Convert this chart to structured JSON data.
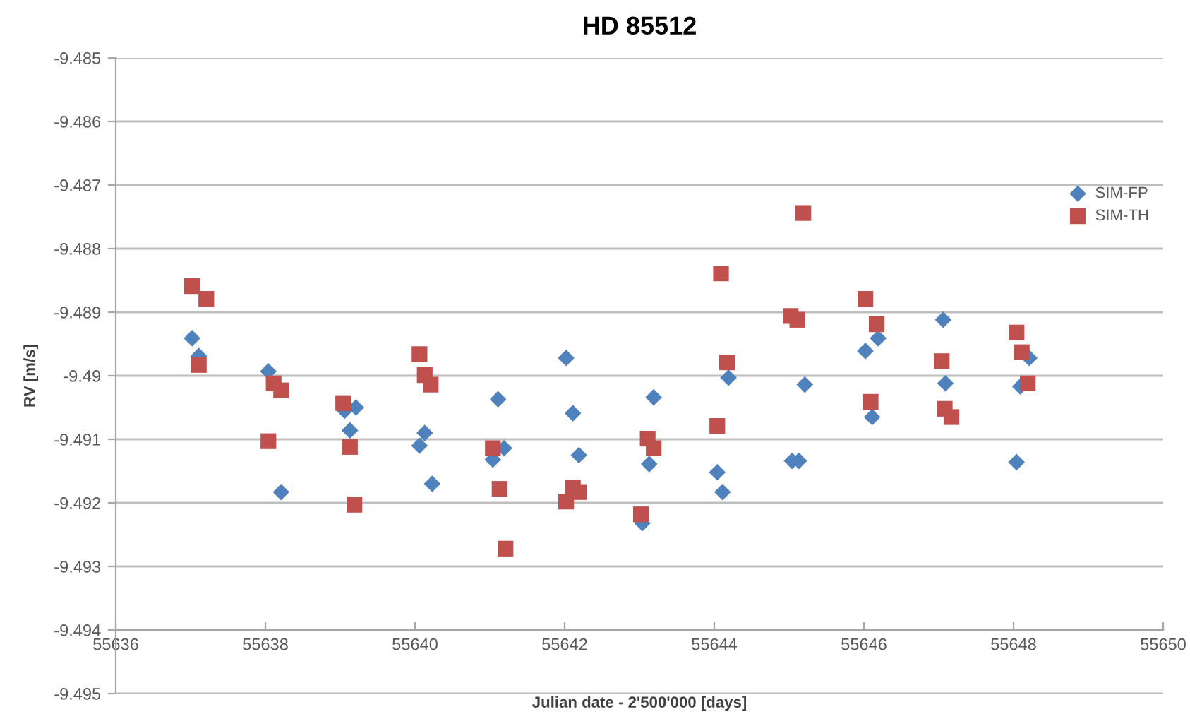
{
  "chart_data": {
    "type": "scatter",
    "title": "HD 85512",
    "xlabel": "Julian date - 2'500'000 [days]",
    "ylabel": "RV [m/s]",
    "xlim": [
      55636,
      55650
    ],
    "xticks": [
      55636,
      55638,
      55640,
      55642,
      55644,
      55646,
      55648,
      55650
    ],
    "ylim": [
      -9.495,
      -9.485
    ],
    "yticks": [
      -9.495,
      -9.494,
      -9.493,
      -9.492,
      -9.491,
      -9.49,
      -9.489,
      -9.488,
      -9.487,
      -9.486,
      -9.485
    ],
    "grid": "y",
    "legend": "top right",
    "series": [
      {
        "name": "SIM-FP",
        "color": "#4f81bd",
        "marker": "diamond",
        "x": [
          55637.02,
          55637.11,
          55638.04,
          55638.21,
          55639.06,
          55639.13,
          55639.21,
          55640.06,
          55640.13,
          55640.23,
          55641.11,
          55641.04,
          55641.19,
          55642.02,
          55642.11,
          55642.19,
          55643.19,
          55643.13,
          55643.04,
          55644.19,
          55644.04,
          55644.11,
          55645.21,
          55645.04,
          55645.13,
          55646.19,
          55646.02,
          55646.11,
          55647.06,
          55647.09,
          55648.21,
          55648.09,
          55648.04
        ],
        "values": [
          -9.48941,
          -9.48969,
          -9.48993,
          -9.49183,
          -9.49055,
          -9.49086,
          -9.4905,
          -9.4911,
          -9.4909,
          -9.4917,
          -9.49037,
          -9.49132,
          -9.49114,
          -9.48972,
          -9.49059,
          -9.49125,
          -9.49034,
          -9.49139,
          -9.49232,
          -9.49003,
          -9.49152,
          -9.49183,
          -9.49014,
          -9.49134,
          -9.49134,
          -9.48941,
          -9.48961,
          -9.49065,
          -9.48912,
          -9.49012,
          -9.48972,
          -9.49017,
          -9.49136
        ]
      },
      {
        "name": "SIM-TH",
        "color": "#c0504d",
        "marker": "square",
        "x": [
          55637.02,
          55637.21,
          55637.11,
          55638.04,
          55638.11,
          55638.21,
          55639.04,
          55639.13,
          55639.19,
          55640.06,
          55640.13,
          55640.21,
          55641.04,
          55641.13,
          55641.21,
          55642.02,
          55642.11,
          55642.19,
          55643.02,
          55643.11,
          55643.19,
          55644.04,
          55644.09,
          55644.17,
          55645.02,
          55645.11,
          55645.19,
          55646.02,
          55646.17,
          55646.09,
          55647.04,
          55647.08,
          55647.17,
          55648.04,
          55648.11,
          55648.19
        ],
        "values": [
          -9.48859,
          -9.48879,
          -9.48983,
          -9.49103,
          -9.49012,
          -9.49023,
          -9.49043,
          -9.49112,
          -9.49203,
          -9.48966,
          -9.48999,
          -9.49014,
          -9.49114,
          -9.49178,
          -9.49272,
          -9.49198,
          -9.49176,
          -9.49183,
          -9.49218,
          -9.49099,
          -9.49114,
          -9.49079,
          -9.48839,
          -9.48979,
          -9.48906,
          -9.48912,
          -9.48744,
          -9.48879,
          -9.48919,
          -9.49041,
          -9.48977,
          -9.49052,
          -9.49065,
          -9.48932,
          -9.48963,
          -9.49012
        ]
      }
    ]
  }
}
